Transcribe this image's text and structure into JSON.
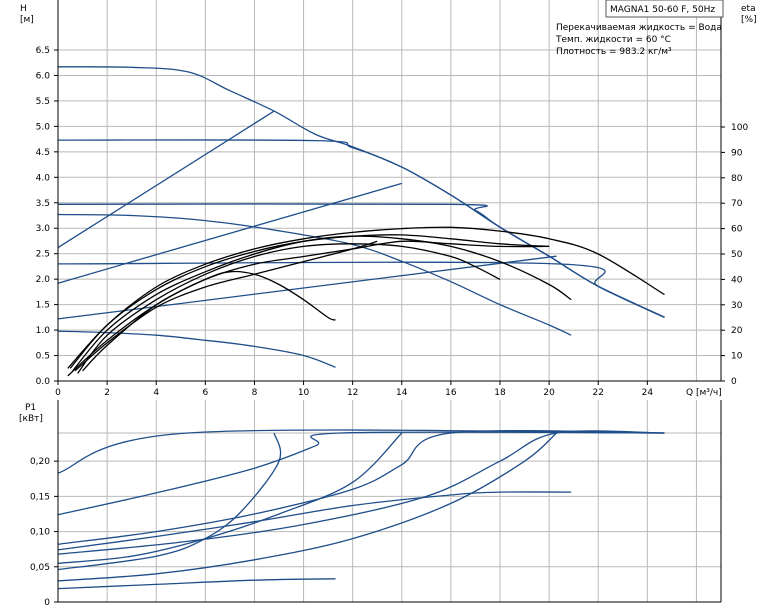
{
  "chart_data": {
    "type": "line",
    "title": "MAGNA1 50-60 F, 50Hz",
    "info_lines": [
      "Перекачиваемая жидкость = Вода",
      "Темп. жидкости = 60 °C",
      "Плотность = 983.2 кг/м³"
    ],
    "head_panel": {
      "y_label_top": "H",
      "y_label_unit": "[м]",
      "right_label_top": "eta",
      "right_label_unit": "[%]",
      "x_label": "Q [м³/ч]",
      "x_ticks": [
        "0",
        "2",
        "4",
        "6",
        "8",
        "10",
        "12",
        "14",
        "16",
        "18",
        "20",
        "22",
        "24"
      ],
      "y_ticks": [
        "0.0",
        "0.5",
        "1.0",
        "1.5",
        "2.0",
        "2.5",
        "3.0",
        "3.5",
        "4.0",
        "4.5",
        "5.0",
        "5.5",
        "6.0",
        "6.5"
      ],
      "eta_ticks": [
        "0",
        "10",
        "20",
        "30",
        "40",
        "50",
        "60",
        "70",
        "80",
        "90",
        "100"
      ],
      "xlim": [
        0,
        27
      ],
      "ylim": [
        0,
        7.5
      ],
      "eta_lim": [
        0,
        150
      ],
      "grid": true,
      "head_curves": [
        {
          "color": "#1f4e8a",
          "points": [
            [
              0,
              6.17
            ],
            [
              3,
              6.16
            ],
            [
              5.3,
              6.07
            ],
            [
              7,
              5.7
            ],
            [
              8.8,
              5.3
            ],
            [
              10.5,
              4.84
            ],
            [
              12,
              4.6
            ],
            [
              14,
              4.2
            ],
            [
              16,
              3.65
            ],
            [
              18,
              3.02
            ],
            [
              20,
              2.45
            ],
            [
              22,
              1.86
            ],
            [
              24.7,
              1.25
            ]
          ]
        },
        {
          "color": "#1f4e8a",
          "points": [
            [
              0,
              4.73
            ],
            [
              10.5,
              4.72
            ],
            [
              12,
              4.58
            ],
            [
              14,
              4.2
            ],
            [
              16,
              3.65
            ],
            [
              18,
              3.02
            ],
            [
              20,
              2.45
            ],
            [
              22,
              1.86
            ],
            [
              24.7,
              1.25
            ]
          ]
        },
        {
          "color": "#1f4e8a",
          "points": [
            [
              0,
              3.47
            ],
            [
              16,
              3.47
            ],
            [
              17,
              3.35
            ],
            [
              18,
              3.02
            ],
            [
              20,
              2.45
            ],
            [
              22,
              1.86
            ],
            [
              24.7,
              1.25
            ]
          ]
        },
        {
          "color": "#1f4e8a",
          "points": [
            [
              0,
              2.3
            ],
            [
              20.3,
              2.3
            ],
            [
              22,
              1.86
            ],
            [
              24.7,
              1.25
            ]
          ]
        },
        {
          "color": "#1f4e8a",
          "points": [
            [
              0,
              3.27
            ],
            [
              3,
              3.25
            ],
            [
              6,
              3.15
            ],
            [
              9,
              2.95
            ],
            [
              12,
              2.68
            ],
            [
              14,
              2.35
            ],
            [
              16,
              1.95
            ],
            [
              18,
              1.5
            ],
            [
              20,
              1.1
            ],
            [
              20.9,
              0.9
            ]
          ]
        },
        {
          "color": "#1f4e8a",
          "points": [
            [
              0,
              0.98
            ],
            [
              2,
              0.95
            ],
            [
              4,
              0.9
            ],
            [
              6,
              0.8
            ],
            [
              8,
              0.68
            ],
            [
              10,
              0.5
            ],
            [
              11.3,
              0.27
            ]
          ]
        }
      ],
      "system_curves": [
        {
          "color": "#1f4e8a",
          "points": [
            [
              0,
              2.62
            ],
            [
              8.8,
              5.3
            ]
          ]
        },
        {
          "color": "#1f4e8a",
          "points": [
            [
              0,
              1.92
            ],
            [
              14,
              3.88
            ]
          ]
        },
        {
          "color": "#1f4e8a",
          "points": [
            [
              0,
              1.22
            ],
            [
              20.3,
              2.45
            ]
          ]
        }
      ],
      "efficiency_curves": [
        {
          "color": "#000000",
          "points": [
            [
              0.4,
              5
            ],
            [
              2,
              22
            ],
            [
              4,
              37
            ],
            [
              6,
              46
            ],
            [
              8,
              52
            ],
            [
              10,
              56
            ],
            [
              12,
              58.5
            ],
            [
              14,
              60
            ],
            [
              16,
              60.5
            ],
            [
              18,
              59
            ],
            [
              20,
              56
            ],
            [
              22,
              50
            ],
            [
              24.7,
              34
            ]
          ]
        },
        {
          "color": "#000000",
          "points": [
            [
              0.5,
              5
            ],
            [
              2,
              22
            ],
            [
              4,
              36
            ],
            [
              6,
              45
            ],
            [
              8,
              51
            ],
            [
              10,
              55
            ],
            [
              12,
              57
            ],
            [
              14,
              57.5
            ],
            [
              16,
              56
            ],
            [
              18,
              54
            ],
            [
              20,
              53
            ]
          ]
        },
        {
          "color": "#000000",
          "points": [
            [
              0.6,
              4
            ],
            [
              2,
              20
            ],
            [
              4,
              34
            ],
            [
              6,
              43
            ],
            [
              8,
              50
            ],
            [
              10,
              55
            ],
            [
              12,
              57
            ],
            [
              14,
              56
            ],
            [
              16,
              53
            ],
            [
              18,
              47
            ],
            [
              20,
              38
            ],
            [
              20.9,
              32
            ]
          ]
        },
        {
          "color": "#000000",
          "points": [
            [
              0.8,
              3
            ],
            [
              2,
              18
            ],
            [
              4,
              32
            ],
            [
              6,
              42
            ],
            [
              8,
              49
            ],
            [
              10,
              53
            ],
            [
              12,
              54
            ],
            [
              14,
              53
            ],
            [
              16,
              49
            ],
            [
              17,
              45
            ],
            [
              18,
              40
            ]
          ]
        },
        {
          "color": "#000000",
          "points": [
            [
              0.4,
              2
            ],
            [
              2,
              16
            ],
            [
              4,
              30
            ],
            [
              6,
              40
            ],
            [
              8,
              46
            ],
            [
              10,
              49
            ],
            [
              12,
              52
            ],
            [
              14,
              55
            ],
            [
              16,
              54
            ],
            [
              18,
              53
            ],
            [
              20,
              53
            ]
          ]
        },
        {
          "color": "#000000",
          "points": [
            [
              0.7,
              4
            ],
            [
              2,
              15
            ],
            [
              4,
              29
            ],
            [
              6,
              37
            ],
            [
              8,
              42
            ],
            [
              10,
              47
            ],
            [
              12,
              52
            ],
            [
              13,
              55
            ]
          ]
        },
        {
          "color": "#000000",
          "points": [
            [
              1,
              4
            ],
            [
              2,
              14
            ],
            [
              4,
              30
            ],
            [
              6,
              40
            ],
            [
              7,
              43
            ],
            [
              8,
              42
            ],
            [
              9,
              38
            ],
            [
              10,
              32
            ],
            [
              11,
              25
            ],
            [
              11.3,
              24
            ]
          ]
        }
      ]
    },
    "power_panel": {
      "y_label_top": "P1",
      "y_label_unit": "[кВт]",
      "y_ticks": [
        "0",
        "0,05",
        "0,10",
        "0,15",
        "0,20"
      ],
      "ylim": [
        0,
        0.25
      ],
      "grid": true,
      "curves": [
        {
          "color": "#1f4e8a",
          "points": [
            [
              0,
              0.183
            ],
            [
              5.3,
              0.24
            ],
            [
              24.7,
              0.24
            ]
          ]
        },
        {
          "color": "#1f4e8a",
          "points": [
            [
              0,
              0.124
            ],
            [
              4,
              0.155
            ],
            [
              8,
              0.19
            ],
            [
              10.5,
              0.222
            ],
            [
              11.5,
              0.24
            ],
            [
              24.7,
              0.24
            ]
          ]
        },
        {
          "color": "#1f4e8a",
          "points": [
            [
              0,
              0.082
            ],
            [
              4,
              0.1
            ],
            [
              8,
              0.125
            ],
            [
              12,
              0.16
            ],
            [
              14,
              0.195
            ],
            [
              16,
              0.24
            ],
            [
              24.7,
              0.24
            ]
          ]
        },
        {
          "color": "#1f4e8a",
          "points": [
            [
              0,
              0.068
            ],
            [
              5,
              0.085
            ],
            [
              10,
              0.11
            ],
            [
              15,
              0.15
            ],
            [
              18,
              0.2
            ],
            [
              20.3,
              0.24
            ],
            [
              24.7,
              0.24
            ]
          ]
        },
        {
          "color": "#1f4e8a",
          "points": [
            [
              0,
              0.074
            ],
            [
              4,
              0.093
            ],
            [
              8,
              0.114
            ],
            [
              12,
              0.137
            ],
            [
              16,
              0.152
            ],
            [
              18,
              0.156
            ],
            [
              20.9,
              0.156
            ]
          ]
        },
        {
          "color": "#1f4e8a",
          "points": [
            [
              0,
              0.019
            ],
            [
              4,
              0.025
            ],
            [
              8,
              0.031
            ],
            [
              11.3,
              0.033
            ]
          ]
        },
        {
          "color": "#1f4e8a",
          "points": [
            [
              0,
              0.046
            ],
            [
              4,
              0.065
            ],
            [
              6,
              0.09
            ],
            [
              7.5,
              0.13
            ],
            [
              9,
              0.2
            ],
            [
              8.8,
              0.24
            ]
          ]
        },
        {
          "color": "#1f4e8a",
          "points": [
            [
              0,
              0.055
            ],
            [
              3,
              0.065
            ],
            [
              6,
              0.09
            ],
            [
              9,
              0.125
            ],
            [
              12,
              0.17
            ],
            [
              14,
              0.24
            ]
          ]
        },
        {
          "color": "#1f4e8a",
          "points": [
            [
              0,
              0.03
            ],
            [
              4,
              0.04
            ],
            [
              8,
              0.06
            ],
            [
              12,
              0.09
            ],
            [
              16,
              0.14
            ],
            [
              19,
              0.2
            ],
            [
              20.3,
              0.24
            ]
          ]
        }
      ]
    }
  }
}
